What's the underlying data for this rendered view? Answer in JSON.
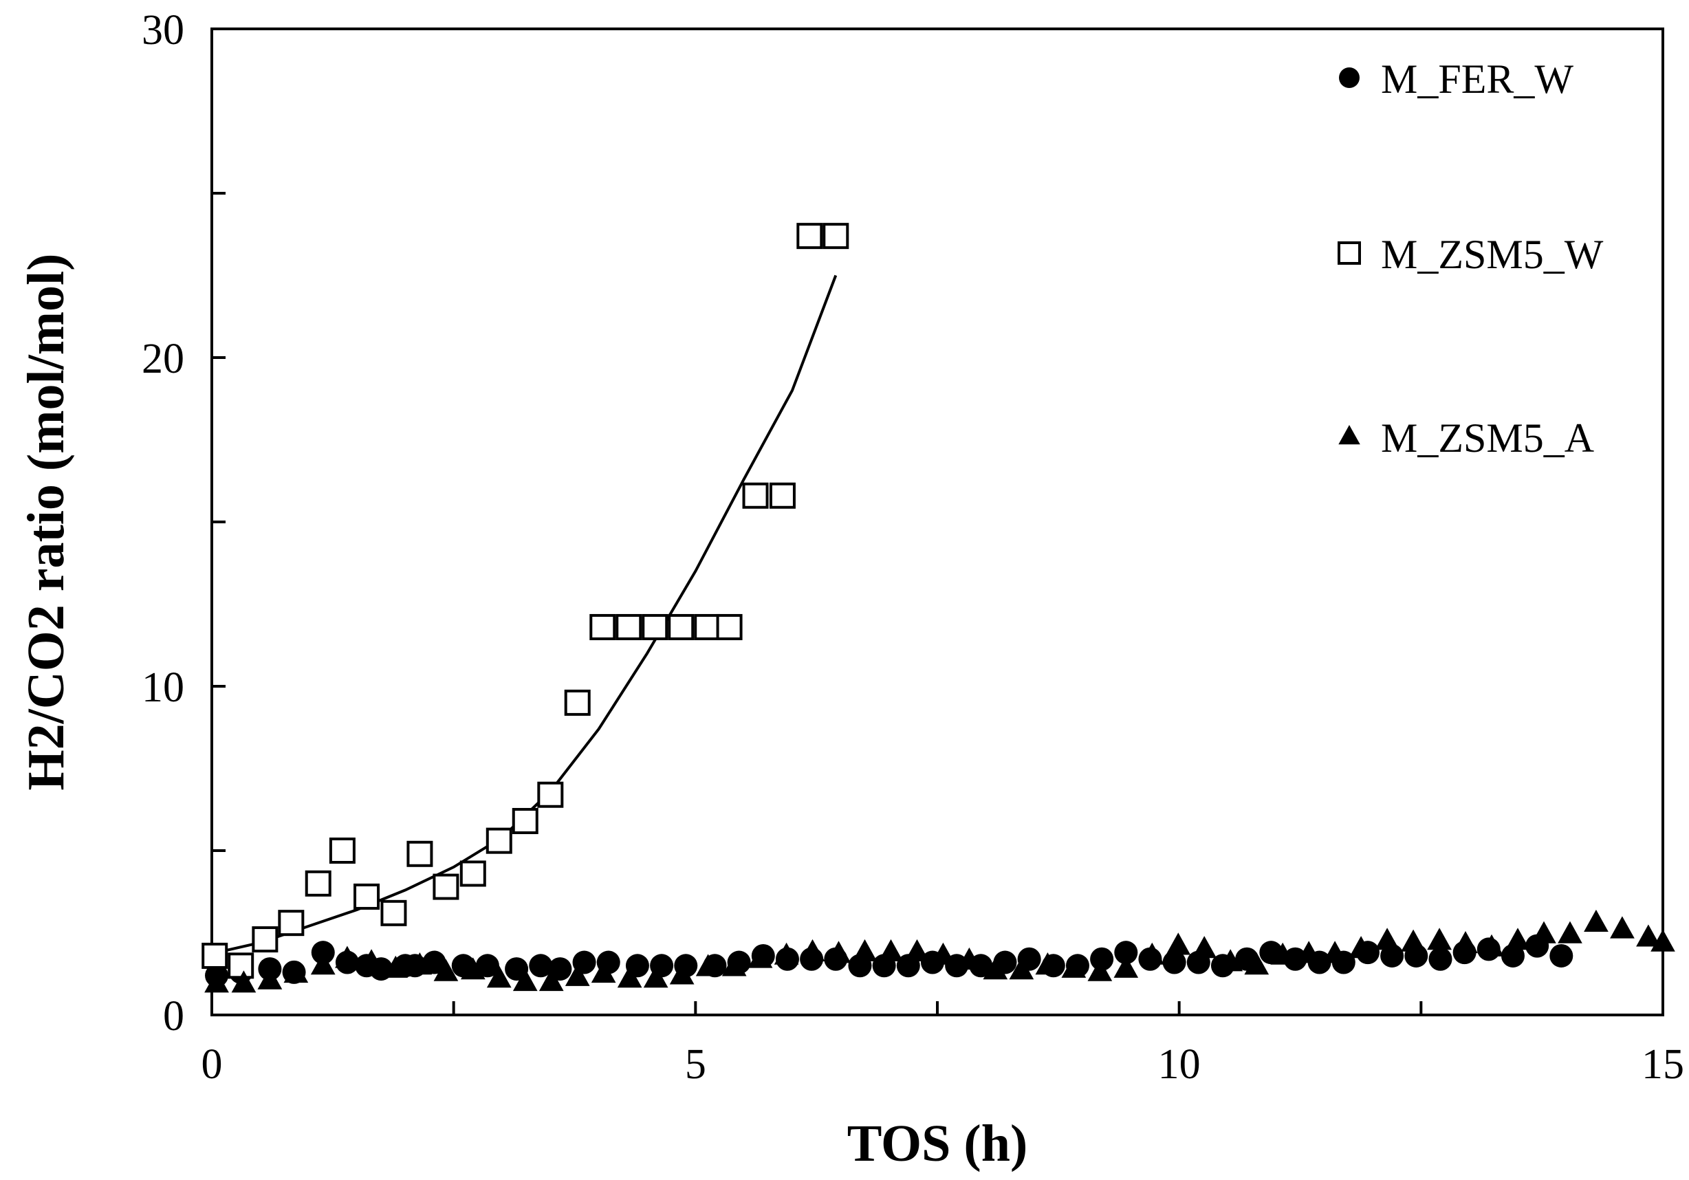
{
  "chart_data": {
    "type": "scatter",
    "xlabel": "TOS (h)",
    "ylabel": "H2/CO2 ratio (mol/mol)",
    "xlim": [
      0,
      15
    ],
    "ylim": [
      0,
      30
    ],
    "x_ticks": [
      0,
      5,
      10,
      15
    ],
    "x_minor_ticks": [
      2.5,
      7.5,
      12.5
    ],
    "y_ticks": [
      0,
      10,
      20,
      30
    ],
    "y_minor_ticks": [
      5,
      15,
      25
    ],
    "grid": false,
    "legend_position": "top-right",
    "series": [
      {
        "name": "M_FER_W",
        "marker": "filled-circle",
        "color": "#000000",
        "points": [
          [
            0.05,
            1.2
          ],
          [
            0.3,
            1.3
          ],
          [
            0.6,
            1.4
          ],
          [
            0.85,
            1.3
          ],
          [
            1.15,
            1.9
          ],
          [
            1.4,
            1.6
          ],
          [
            1.6,
            1.5
          ],
          [
            1.75,
            1.4
          ],
          [
            2.0,
            1.5
          ],
          [
            2.1,
            1.5
          ],
          [
            2.3,
            1.6
          ],
          [
            2.6,
            1.5
          ],
          [
            2.85,
            1.5
          ],
          [
            3.15,
            1.4
          ],
          [
            3.4,
            1.5
          ],
          [
            3.6,
            1.4
          ],
          [
            3.85,
            1.6
          ],
          [
            4.1,
            1.6
          ],
          [
            4.4,
            1.5
          ],
          [
            4.65,
            1.5
          ],
          [
            4.9,
            1.5
          ],
          [
            5.2,
            1.5
          ],
          [
            5.45,
            1.6
          ],
          [
            5.7,
            1.8
          ],
          [
            5.95,
            1.7
          ],
          [
            6.2,
            1.7
          ],
          [
            6.45,
            1.7
          ],
          [
            6.7,
            1.5
          ],
          [
            6.95,
            1.5
          ],
          [
            7.2,
            1.5
          ],
          [
            7.45,
            1.6
          ],
          [
            7.7,
            1.5
          ],
          [
            7.95,
            1.5
          ],
          [
            8.2,
            1.6
          ],
          [
            8.45,
            1.7
          ],
          [
            8.7,
            1.5
          ],
          [
            8.95,
            1.5
          ],
          [
            9.2,
            1.7
          ],
          [
            9.45,
            1.9
          ],
          [
            9.7,
            1.7
          ],
          [
            9.95,
            1.6
          ],
          [
            10.2,
            1.6
          ],
          [
            10.45,
            1.5
          ],
          [
            10.7,
            1.7
          ],
          [
            10.95,
            1.9
          ],
          [
            11.2,
            1.7
          ],
          [
            11.45,
            1.6
          ],
          [
            11.7,
            1.6
          ],
          [
            11.95,
            1.9
          ],
          [
            12.2,
            1.8
          ],
          [
            12.45,
            1.8
          ],
          [
            12.7,
            1.7
          ],
          [
            12.95,
            1.9
          ],
          [
            13.2,
            2.0
          ],
          [
            13.45,
            1.8
          ],
          [
            13.7,
            2.1
          ],
          [
            13.95,
            1.8
          ]
        ]
      },
      {
        "name": "M_ZSM5_W",
        "marker": "open-square",
        "color": "#000000",
        "points": [
          [
            0.03,
            1.8
          ],
          [
            0.3,
            1.5
          ],
          [
            0.55,
            2.3
          ],
          [
            0.82,
            2.8
          ],
          [
            1.1,
            4.0
          ],
          [
            1.35,
            5.0
          ],
          [
            1.6,
            3.6
          ],
          [
            1.88,
            3.1
          ],
          [
            2.15,
            4.9
          ],
          [
            2.42,
            3.9
          ],
          [
            2.7,
            4.3
          ],
          [
            2.97,
            5.3
          ],
          [
            3.24,
            5.9
          ],
          [
            3.5,
            6.7
          ],
          [
            3.78,
            9.5
          ],
          [
            4.04,
            11.8
          ],
          [
            4.31,
            11.8
          ],
          [
            4.58,
            11.8
          ],
          [
            4.85,
            11.8
          ],
          [
            5.12,
            11.8
          ],
          [
            5.35,
            11.8
          ],
          [
            5.62,
            15.8
          ],
          [
            5.9,
            15.8
          ],
          [
            6.18,
            23.7
          ],
          [
            6.45,
            23.7
          ]
        ]
      },
      {
        "name": "M_ZSM5_A",
        "marker": "filled-triangle",
        "color": "#000000",
        "points": [
          [
            0.05,
            0.95
          ],
          [
            0.33,
            0.95
          ],
          [
            0.6,
            1.05
          ],
          [
            0.87,
            1.25
          ],
          [
            1.15,
            1.5
          ],
          [
            1.4,
            1.7
          ],
          [
            1.65,
            1.6
          ],
          [
            1.9,
            1.4
          ],
          [
            2.15,
            1.5
          ],
          [
            2.42,
            1.3
          ],
          [
            2.7,
            1.35
          ],
          [
            2.97,
            1.1
          ],
          [
            3.24,
            1.0
          ],
          [
            3.51,
            1.0
          ],
          [
            3.78,
            1.15
          ],
          [
            4.05,
            1.25
          ],
          [
            4.32,
            1.1
          ],
          [
            4.59,
            1.1
          ],
          [
            4.86,
            1.2
          ],
          [
            5.13,
            1.45
          ],
          [
            5.4,
            1.45
          ],
          [
            5.67,
            1.7
          ],
          [
            5.94,
            1.8
          ],
          [
            6.21,
            1.9
          ],
          [
            6.48,
            1.85
          ],
          [
            6.75,
            1.9
          ],
          [
            7.02,
            1.9
          ],
          [
            7.29,
            1.9
          ],
          [
            7.56,
            1.8
          ],
          [
            7.83,
            1.65
          ],
          [
            8.1,
            1.35
          ],
          [
            8.37,
            1.35
          ],
          [
            8.64,
            1.5
          ],
          [
            8.91,
            1.4
          ],
          [
            9.18,
            1.3
          ],
          [
            9.45,
            1.4
          ],
          [
            9.72,
            1.8
          ],
          [
            9.99,
            2.1
          ],
          [
            10.26,
            2.0
          ],
          [
            10.53,
            1.6
          ],
          [
            10.8,
            1.5
          ],
          [
            11.07,
            1.8
          ],
          [
            11.34,
            1.85
          ],
          [
            11.61,
            1.85
          ],
          [
            11.88,
            2.0
          ],
          [
            12.15,
            2.25
          ],
          [
            12.42,
            2.2
          ],
          [
            12.69,
            2.25
          ],
          [
            12.96,
            2.15
          ],
          [
            13.23,
            2.05
          ],
          [
            13.5,
            2.25
          ],
          [
            13.77,
            2.45
          ],
          [
            14.04,
            2.45
          ],
          [
            14.31,
            2.8
          ],
          [
            14.58,
            2.6
          ],
          [
            14.85,
            2.35
          ],
          [
            15.0,
            2.2
          ]
        ]
      }
    ],
    "fit_curve": {
      "series": "M_ZSM5_W",
      "points": [
        [
          0.05,
          1.9
        ],
        [
          0.5,
          2.2
        ],
        [
          1.0,
          2.7
        ],
        [
          1.5,
          3.2
        ],
        [
          2.0,
          3.8
        ],
        [
          2.5,
          4.5
        ],
        [
          3.0,
          5.4
        ],
        [
          3.5,
          6.8
        ],
        [
          4.0,
          8.7
        ],
        [
          4.5,
          11.0
        ],
        [
          5.0,
          13.5
        ],
        [
          5.5,
          16.3
        ],
        [
          6.0,
          19.0
        ],
        [
          6.45,
          22.5
        ]
      ]
    }
  }
}
